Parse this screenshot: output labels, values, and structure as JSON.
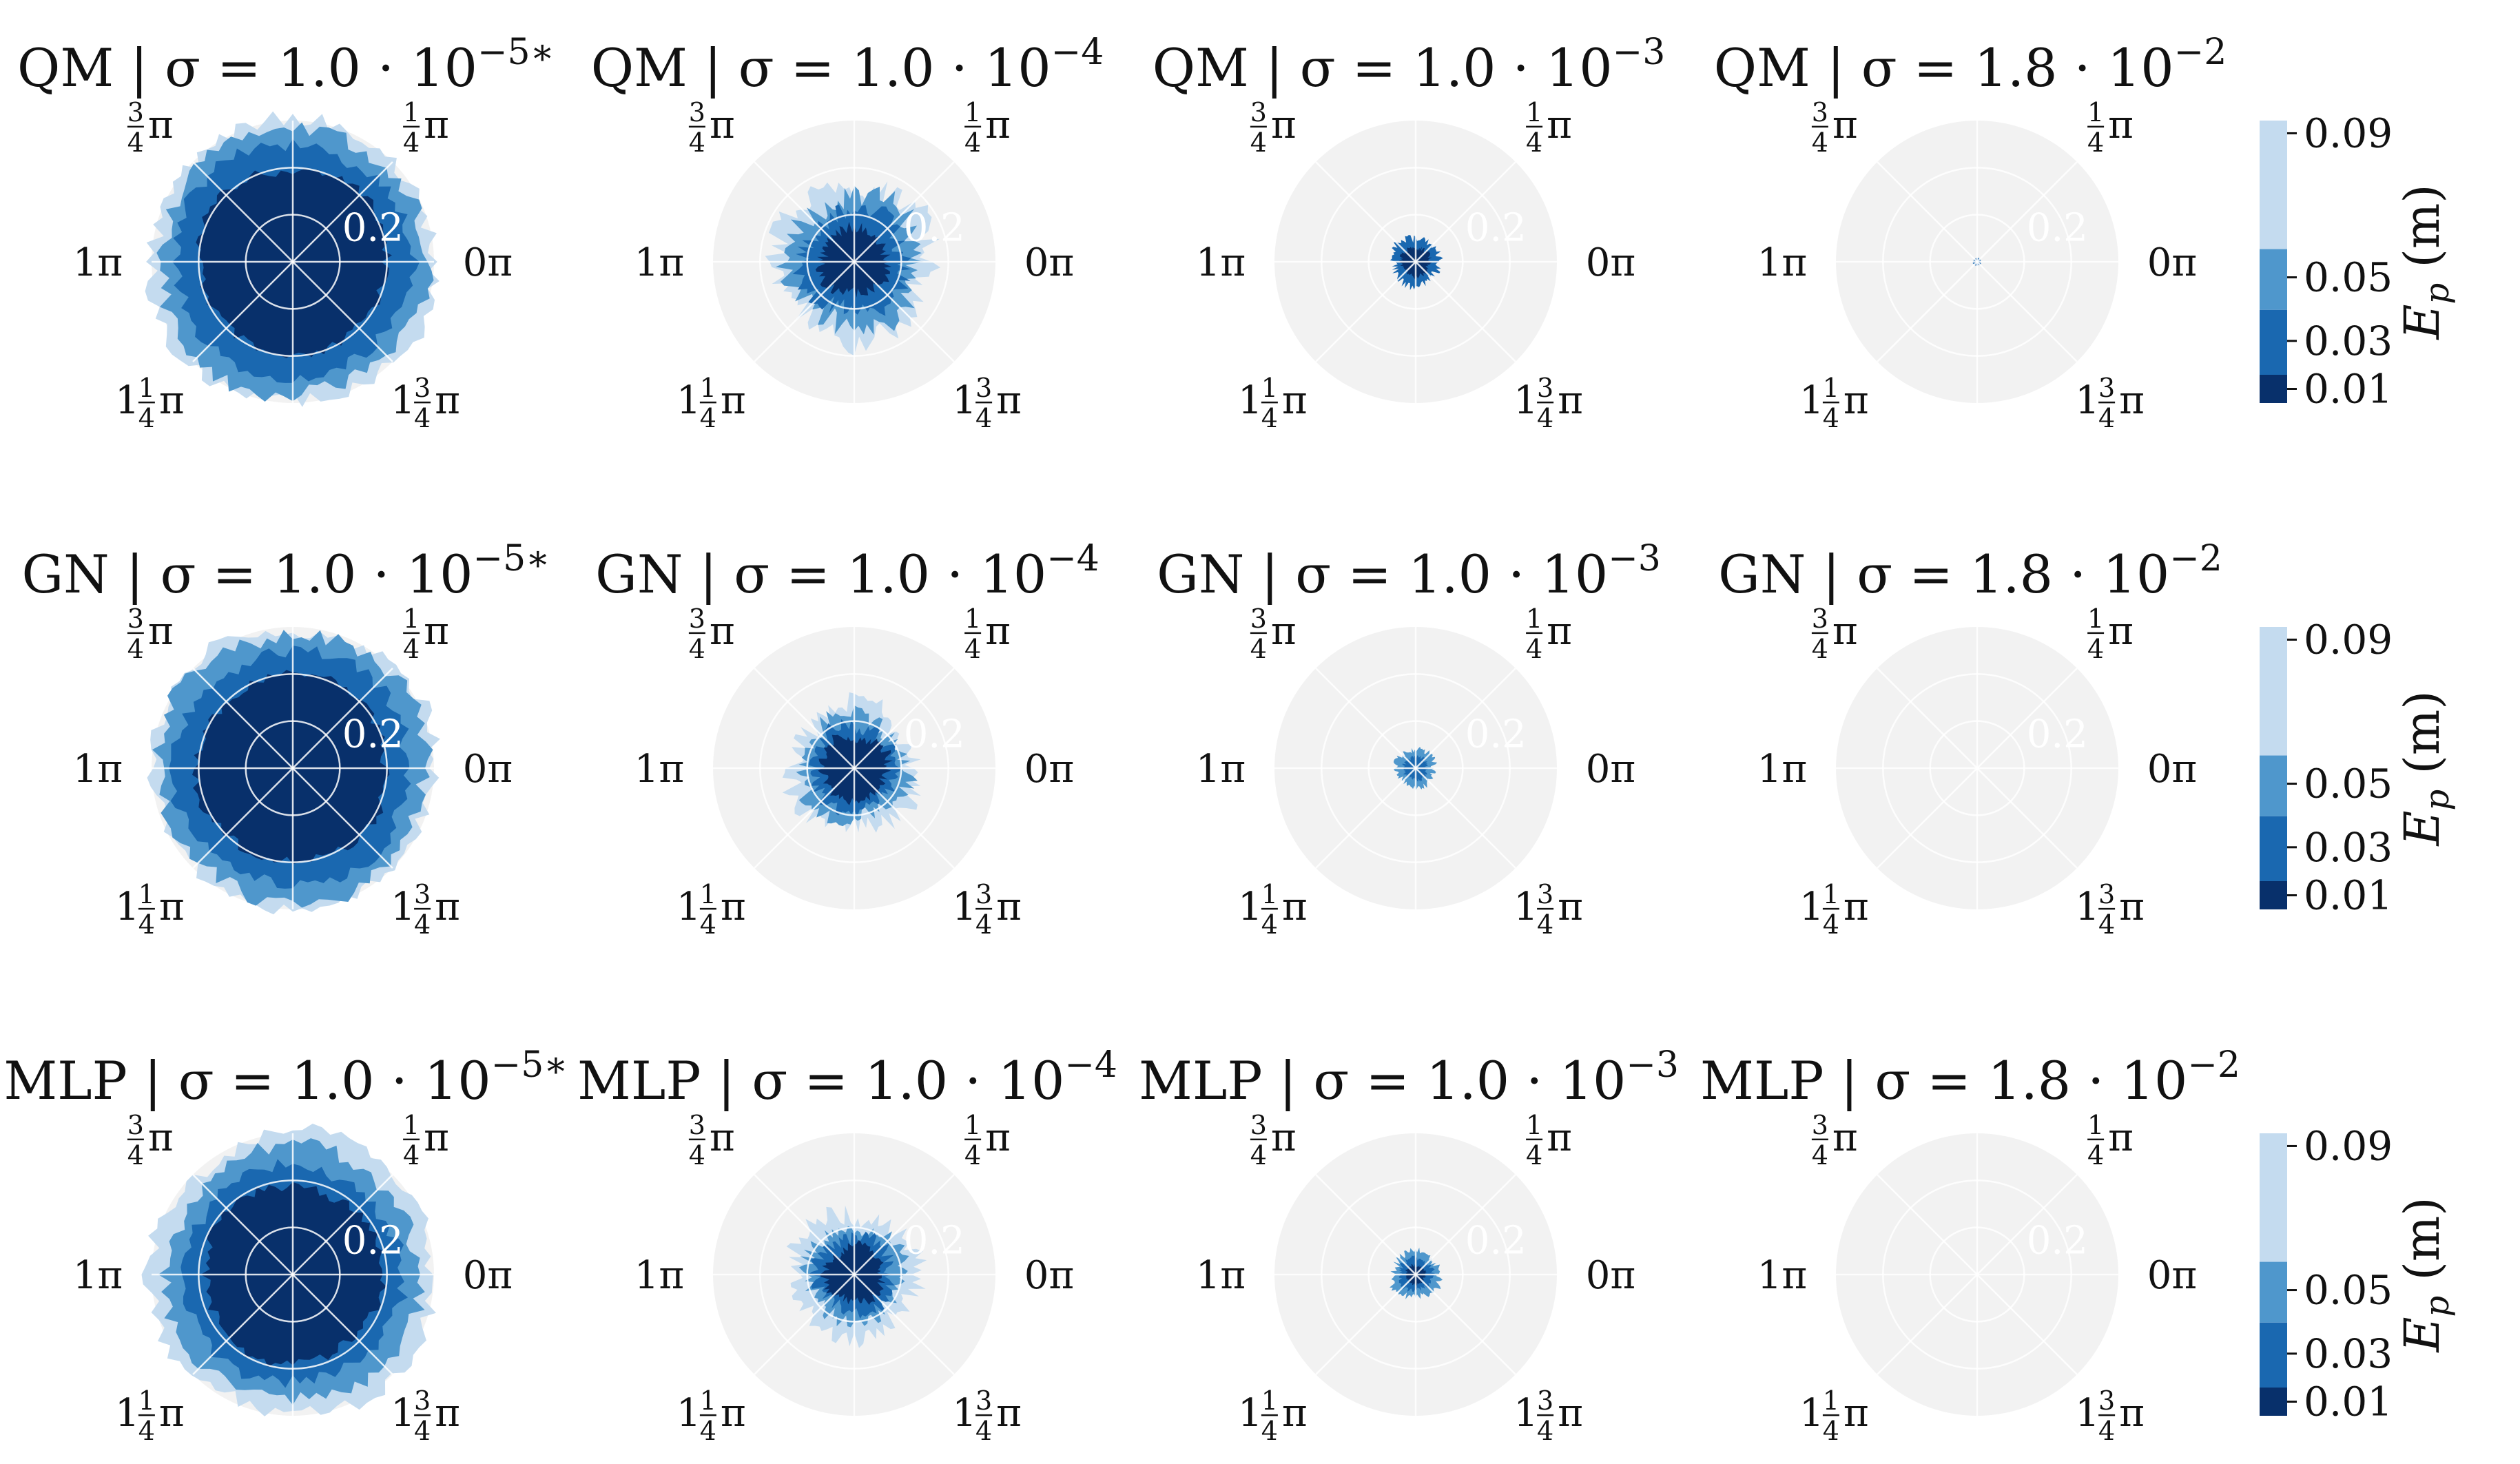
{
  "chart_data": {
    "type": "polar-contour",
    "layout": "3 rows x 4 columns",
    "rows": [
      {
        "method": "QM",
        "panels": [
          {
            "title": "QM | σ = 1.0 · 10",
            "exponent": "−5∗",
            "sigma": 1e-05,
            "levels_present": [
              0.01,
              0.03,
              0.05,
              0.09
            ],
            "extent_by_level": [
              0.2,
              0.25,
              0.285,
              0.3
            ]
          },
          {
            "title": "QM | σ = 1.0 · 10",
            "exponent": "−4",
            "sigma": 0.0001,
            "levels_present": [
              0.01,
              0.03,
              0.05,
              0.09
            ],
            "extent_by_level": [
              0.07,
              0.11,
              0.14,
              0.16
            ]
          },
          {
            "title": "QM | σ = 1.0 · 10",
            "exponent": "−3",
            "sigma": 0.001,
            "levels_present": [
              0.01,
              0.03
            ],
            "extent_by_level": [
              0.03,
              0.05,
              0,
              0
            ]
          },
          {
            "title": "QM | σ = 1.8 · 10",
            "exponent": "−2",
            "sigma": 0.018,
            "levels_present": [
              0.03
            ],
            "extent_by_level": [
              0,
              0.008,
              0,
              0
            ]
          }
        ]
      },
      {
        "method": "GN",
        "panels": [
          {
            "title": "GN | σ = 1.0 · 10",
            "exponent": "−5∗",
            "sigma": 1e-05,
            "levels_present": [
              0.01,
              0.03,
              0.05,
              0.09
            ],
            "extent_by_level": [
              0.2,
              0.25,
              0.285,
              0.3
            ]
          },
          {
            "title": "GN | σ = 1.0 · 10",
            "exponent": "−4",
            "sigma": 0.0001,
            "levels_present": [
              0.01,
              0.03,
              0.05,
              0.09
            ],
            "extent_by_level": [
              0.07,
              0.09,
              0.11,
              0.13
            ]
          },
          {
            "title": "GN | σ = 1.0 · 10",
            "exponent": "−3",
            "sigma": 0.001,
            "levels_present": [
              0.03,
              0.05
            ],
            "extent_by_level": [
              0,
              0.025,
              0.04,
              0
            ]
          },
          {
            "title": "GN | σ = 1.8 · 10",
            "exponent": "−2",
            "sigma": 0.018,
            "levels_present": [],
            "extent_by_level": [
              0,
              0,
              0,
              0
            ]
          }
        ]
      },
      {
        "method": "MLP",
        "panels": [
          {
            "title": "MLP | σ = 1.0 · 10",
            "exponent": "−5∗",
            "sigma": 1e-05,
            "levels_present": [
              0.01,
              0.03,
              0.05,
              0.09
            ],
            "extent_by_level": [
              0.19,
              0.23,
              0.27,
              0.3
            ]
          },
          {
            "title": "MLP | σ = 1.0 · 10",
            "exponent": "−4",
            "sigma": 0.0001,
            "levels_present": [
              0.01,
              0.03,
              0.05,
              0.09
            ],
            "extent_by_level": [
              0.06,
              0.08,
              0.1,
              0.13
            ]
          },
          {
            "title": "MLP | σ = 1.0 · 10",
            "exponent": "−3",
            "sigma": 0.001,
            "levels_present": [
              0.01,
              0.03,
              0.05
            ],
            "extent_by_level": [
              0.02,
              0.035,
              0.05,
              0
            ]
          },
          {
            "title": "MLP | σ = 1.8 · 10",
            "exponent": "−2",
            "sigma": 0.018,
            "levels_present": [],
            "extent_by_level": [
              0,
              0,
              0,
              0
            ]
          }
        ]
      }
    ],
    "angular_ticks": [
      {
        "angle_pi": 0.0,
        "whole": "",
        "num": "",
        "den": "",
        "tail": "0π"
      },
      {
        "angle_pi": 0.25,
        "whole": "",
        "num": "1",
        "den": "4",
        "tail": "π"
      },
      {
        "angle_pi": 0.75,
        "whole": "",
        "num": "3",
        "den": "4",
        "tail": "π"
      },
      {
        "angle_pi": 1.0,
        "whole": "",
        "num": "",
        "den": "",
        "tail": "1π"
      },
      {
        "angle_pi": 1.25,
        "whole": "1",
        "num": "1",
        "den": "4",
        "tail": "π"
      },
      {
        "angle_pi": 1.75,
        "whole": "1",
        "num": "3",
        "den": "4",
        "tail": "π"
      }
    ],
    "radial_tick_label": "0.2",
    "rlim": [
      0,
      0.3
    ],
    "colorbar": {
      "label": "E",
      "label_sub": "p",
      "label_unit": "(m)",
      "ticks": [
        "0.01",
        "0.03",
        "0.05",
        "0.09"
      ],
      "levels": [
        0.01,
        0.03,
        0.05,
        0.09
      ],
      "colors": [
        "#08306b",
        "#1a68b0",
        "#4f97cc",
        "#c4dbef"
      ]
    },
    "background_color": "#f2f2f2",
    "grid": true
  }
}
